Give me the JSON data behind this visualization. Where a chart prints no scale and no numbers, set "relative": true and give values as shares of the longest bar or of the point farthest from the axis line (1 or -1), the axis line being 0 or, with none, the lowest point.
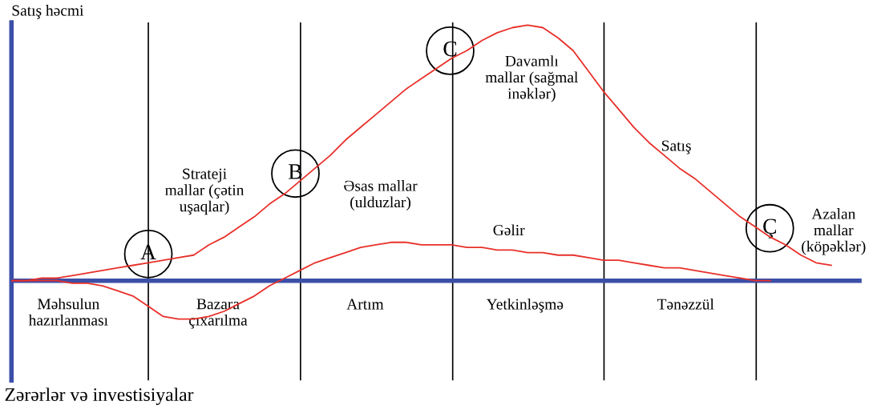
{
  "chart_data": {
    "type": "line",
    "relative": true,
    "ylabel": "Satış həcmi",
    "legend": false,
    "grid": "x",
    "marker": "none",
    "line_style": "solid",
    "categories": [
      null,
      null,
      null,
      null,
      null,
      null,
      null,
      null,
      null,
      null,
      null,
      null,
      null,
      null,
      null,
      null,
      null,
      null,
      null,
      null,
      null,
      null,
      null,
      null,
      null,
      null,
      null,
      null,
      null,
      null,
      null,
      null,
      null,
      null,
      null,
      null,
      null,
      null,
      null,
      null,
      null,
      null,
      null,
      null,
      null,
      null,
      null,
      null,
      null,
      null,
      null,
      null,
      null,
      null,
      null,
      null,
      null
    ],
    "series": [
      {
        "color": "#e8302a",
        "values": [
          0,
          0,
          0.01,
          0.01,
          0.02,
          0.03,
          0.04,
          0.05,
          0.06,
          0.07,
          0.08,
          0.09,
          0.1,
          0.14,
          0.17,
          0.21,
          0.25,
          0.3,
          0.34,
          0.39,
          0.44,
          0.49,
          0.55,
          0.6,
          0.65,
          0.7,
          0.75,
          0.79,
          0.83,
          0.87,
          0.9,
          0.94,
          0.97,
          0.99,
          1.0,
          0.99,
          0.95,
          0.9,
          0.82,
          0.74,
          0.67,
          0.6,
          0.54,
          0.49,
          0.44,
          0.4,
          0.35,
          0.3,
          0.25,
          0.21,
          0.17,
          0.14,
          0.1,
          0.07,
          0.06,
          null,
          null
        ]
      },
      {
        "color": "#e8302a",
        "values": [
          0,
          0,
          0,
          0,
          -0.01,
          -0.01,
          -0.02,
          -0.04,
          -0.06,
          -0.1,
          -0.14,
          -0.15,
          -0.15,
          -0.14,
          -0.12,
          -0.09,
          -0.06,
          -0.02,
          0.01,
          0.04,
          0.07,
          0.09,
          0.11,
          0.13,
          0.14,
          0.15,
          0.15,
          0.14,
          0.14,
          0.14,
          0.13,
          0.13,
          0.12,
          0.12,
          0.11,
          0.11,
          0.1,
          0.1,
          0.09,
          0.08,
          0.08,
          0.07,
          0.06,
          0.05,
          0.05,
          0.04,
          0.03,
          0.02,
          0.01,
          0,
          0,
          null,
          null,
          null,
          null,
          null,
          null
        ]
      }
    ],
    "ref_lines": [
      {
        "axis": "y",
        "value": 0,
        "color": "#3b4fa8"
      }
    ],
    "annotations": [
      "A",
      "B",
      "C",
      "Ç",
      "Strateji\nmallar (çətin\nuşaqlar)",
      "Əsas mallar\n(ulduzlar)",
      "Davamlı\nmallar (sağmal\ninəklər)",
      "Azalan\nmallar\n(köpəklər)",
      "Satış",
      "Gəlir",
      "Məhsulun\nhazırlanması",
      "Bazara\nçıxarılma",
      "Artım",
      "Yetkinləşmə",
      "Tənəzzül",
      "Zərərlər və investisiyalar"
    ]
  }
}
